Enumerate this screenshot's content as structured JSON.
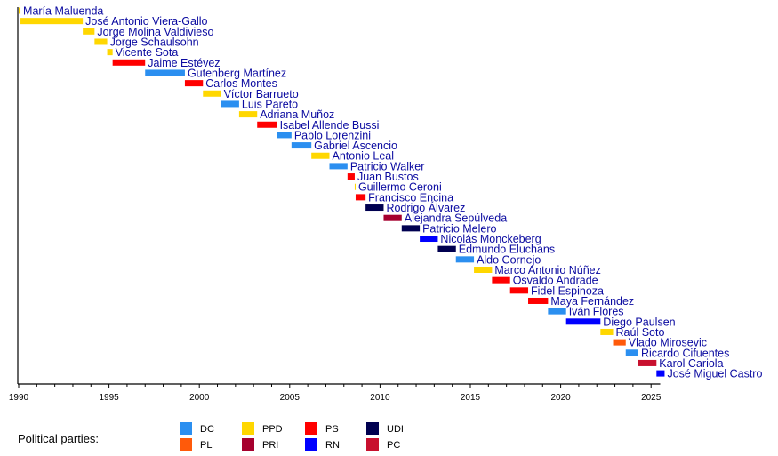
{
  "chart_data": {
    "type": "timeline",
    "x_range": [
      1990,
      2026
    ],
    "x_ticks": [
      1990,
      1995,
      2000,
      2005,
      2010,
      2015,
      2020,
      2025
    ],
    "minor_tick_step_years": 1,
    "grid": false,
    "legend_title": "Political parties:",
    "legend_placement": "bottom-left",
    "parties": [
      {
        "code": "DC",
        "color": "#2b8ff0"
      },
      {
        "code": "PL",
        "color": "#ff5a0a"
      },
      {
        "code": "PPD",
        "color": "#ffd700"
      },
      {
        "code": "PRI",
        "color": "#a6002e"
      },
      {
        "code": "PS",
        "color": "#ff0000"
      },
      {
        "code": "RN",
        "color": "#0000ff"
      },
      {
        "code": "UDI",
        "color": "#000050"
      },
      {
        "code": "PC",
        "color": "#c8102e"
      }
    ],
    "label_color": "#0a0aa0",
    "terms": [
      {
        "name": "María Maluenda",
        "party": "PPD",
        "start": 1990.0,
        "end": 1990.1
      },
      {
        "name": "José Antonio Viera-Gallo",
        "party": "PPD",
        "start": 1990.1,
        "end": 1993.55
      },
      {
        "name": "Jorge Molina Valdivieso",
        "party": "PPD",
        "start": 1993.55,
        "end": 1994.2
      },
      {
        "name": "Jorge Schaulsohn",
        "party": "PPD",
        "start": 1994.2,
        "end": 1994.9
      },
      {
        "name": "Vicente Sota",
        "party": "PPD",
        "start": 1994.9,
        "end": 1995.2
      },
      {
        "name": "Jaime Estévez",
        "party": "PS",
        "start": 1995.2,
        "end": 1997.0
      },
      {
        "name": "Gutenberg Martínez",
        "party": "DC",
        "start": 1997.0,
        "end": 1999.2
      },
      {
        "name": "Carlos Montes",
        "party": "PS",
        "start": 1999.2,
        "end": 2000.2
      },
      {
        "name": "Víctor Barrueto",
        "party": "PPD",
        "start": 2000.2,
        "end": 2001.2
      },
      {
        "name": "Luis Pareto",
        "party": "DC",
        "start": 2001.2,
        "end": 2002.2
      },
      {
        "name": "Adriana Muñoz",
        "party": "PPD",
        "start": 2002.2,
        "end": 2003.2
      },
      {
        "name": "Isabel Allende Bussi",
        "party": "PS",
        "start": 2003.2,
        "end": 2004.3
      },
      {
        "name": "Pablo Lorenzini",
        "party": "DC",
        "start": 2004.3,
        "end": 2005.1
      },
      {
        "name": "Gabriel Ascencio",
        "party": "DC",
        "start": 2005.1,
        "end": 2006.2
      },
      {
        "name": "Antonio Leal",
        "party": "PPD",
        "start": 2006.2,
        "end": 2007.2
      },
      {
        "name": "Patricio Walker",
        "party": "DC",
        "start": 2007.2,
        "end": 2008.2
      },
      {
        "name": "Juan Bustos",
        "party": "PS",
        "start": 2008.2,
        "end": 2008.6
      },
      {
        "name": "Guillermo Ceroni",
        "party": "PPD",
        "start": 2008.6,
        "end": 2008.65
      },
      {
        "name": "Francisco Encina",
        "party": "PS",
        "start": 2008.65,
        "end": 2009.2
      },
      {
        "name": "Rodrigo Álvarez",
        "party": "UDI",
        "start": 2009.2,
        "end": 2010.2
      },
      {
        "name": "Alejandra Sepúlveda",
        "party": "PRI",
        "start": 2010.2,
        "end": 2011.2
      },
      {
        "name": "Patricio Melero",
        "party": "UDI",
        "start": 2011.2,
        "end": 2012.2
      },
      {
        "name": "Nicolás Monckeberg",
        "party": "RN",
        "start": 2012.2,
        "end": 2013.2
      },
      {
        "name": "Edmundo Eluchans",
        "party": "UDI",
        "start": 2013.2,
        "end": 2014.2
      },
      {
        "name": "Aldo Cornejo",
        "party": "DC",
        "start": 2014.2,
        "end": 2015.2
      },
      {
        "name": "Marco Antonio Núñez",
        "party": "PPD",
        "start": 2015.2,
        "end": 2016.2
      },
      {
        "name": "Osvaldo Andrade",
        "party": "PS",
        "start": 2016.2,
        "end": 2017.2
      },
      {
        "name": "Fidel Espinoza",
        "party": "PS",
        "start": 2017.2,
        "end": 2018.2
      },
      {
        "name": "Maya Fernández",
        "party": "PS",
        "start": 2018.2,
        "end": 2019.3
      },
      {
        "name": "Iván Flores",
        "party": "DC",
        "start": 2019.3,
        "end": 2020.3
      },
      {
        "name": "Diego Paulsen",
        "party": "RN",
        "start": 2020.3,
        "end": 2022.2
      },
      {
        "name": "Raúl Soto",
        "party": "PPD",
        "start": 2022.2,
        "end": 2022.9
      },
      {
        "name": "Vlado Mirosevic",
        "party": "PL",
        "start": 2022.9,
        "end": 2023.6
      },
      {
        "name": "Ricardo Cifuentes",
        "party": "DC",
        "start": 2023.6,
        "end": 2024.3
      },
      {
        "name": "Karol Cariola",
        "party": "PC",
        "start": 2024.3,
        "end": 2025.3
      },
      {
        "name": "José Miguel Castro",
        "party": "RN",
        "start": 2025.3,
        "end": 2025.75
      }
    ]
  }
}
